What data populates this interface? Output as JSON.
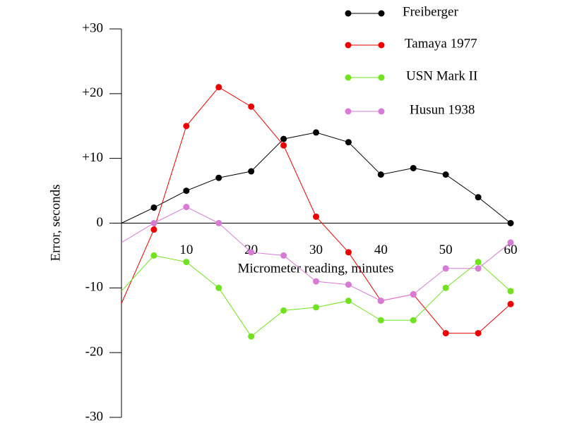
{
  "chart_data": {
    "type": "line",
    "x_label": "Micrometer reading, minutes",
    "y_label": "Error, seconds",
    "x": [
      0,
      5,
      10,
      15,
      20,
      25,
      30,
      35,
      40,
      45,
      50,
      55,
      60
    ],
    "xlim": [
      0,
      60
    ],
    "xticks": [
      10,
      20,
      30,
      40,
      50,
      60
    ],
    "ylim": [
      -30,
      30
    ],
    "yticks": [
      {
        "value": 30,
        "label": "+30"
      },
      {
        "value": 20,
        "label": "+20"
      },
      {
        "value": 10,
        "label": "+10"
      },
      0,
      -10,
      -20,
      -30
    ],
    "series": [
      {
        "name": "Freiberger",
        "color": "#000000",
        "values": [
          0,
          2.4,
          5,
          7,
          8,
          13,
          14,
          12.5,
          7.5,
          8.5,
          7.5,
          4,
          0
        ]
      },
      {
        "name": "Tamaya 1977",
        "color": "#ee0000",
        "values": [
          -12.4,
          -1,
          15,
          21,
          18,
          12,
          1,
          -4.5,
          -12,
          -11,
          -17,
          -17,
          -12.5
        ]
      },
      {
        "name": "USN Mark II",
        "color": "#72e21e",
        "values": [
          -10.5,
          -5,
          -6,
          -10,
          -17.5,
          -13.5,
          -13,
          -12,
          -15,
          -15,
          -10,
          -6,
          -10.5
        ]
      },
      {
        "name": "Husun 1938",
        "color": "#d77bd7",
        "values": [
          -3,
          0,
          2.5,
          0,
          -4.5,
          -5,
          -9,
          -9.5,
          -12,
          -11,
          -7,
          -7,
          -3
        ]
      }
    ]
  }
}
